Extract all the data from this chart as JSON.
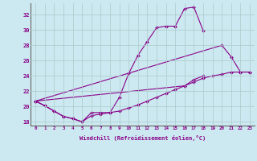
{
  "xlabel": "Windchill (Refroidissement éolien,°C)",
  "background_color": "#cce8f0",
  "grid_color": "#aacccc",
  "line_color": "#880088",
  "line1_x": [
    0,
    1,
    2,
    3,
    4,
    5,
    6,
    7,
    8,
    9,
    10,
    11,
    12,
    13,
    14,
    15,
    16,
    17,
    18
  ],
  "line1_y": [
    20.7,
    20.1,
    19.4,
    18.7,
    18.4,
    18.0,
    19.2,
    19.2,
    19.2,
    21.2,
    24.3,
    26.7,
    28.5,
    30.3,
    30.5,
    30.5,
    32.8,
    33.0,
    29.9
  ],
  "line2_x": [
    0,
    20,
    21,
    22,
    23
  ],
  "line2_y": [
    20.7,
    28.0,
    26.5,
    24.5,
    24.5
  ],
  "line3_x": [
    0,
    1,
    2,
    3,
    4,
    5,
    6,
    7,
    8,
    9,
    10,
    11,
    12,
    13,
    14,
    15,
    16,
    17,
    18,
    19,
    20,
    21,
    22,
    23
  ],
  "line3_y": [
    20.7,
    20.1,
    19.4,
    18.7,
    18.4,
    18.0,
    18.8,
    19.0,
    19.2,
    19.4,
    19.8,
    20.2,
    20.7,
    21.2,
    21.7,
    22.2,
    22.7,
    23.2,
    23.7,
    24.0,
    24.2,
    24.5,
    24.5,
    24.5
  ],
  "line4_x": [
    0,
    16,
    17,
    18
  ],
  "line4_y": [
    20.7,
    22.7,
    23.5,
    24.0
  ],
  "ylim": [
    17.5,
    33.5
  ],
  "xlim": [
    -0.5,
    23.5
  ],
  "yticks": [
    18,
    20,
    22,
    24,
    26,
    28,
    30,
    32
  ],
  "xticks": [
    0,
    1,
    2,
    3,
    4,
    5,
    6,
    7,
    8,
    9,
    10,
    11,
    12,
    13,
    14,
    15,
    16,
    17,
    18,
    19,
    20,
    21,
    22,
    23
  ]
}
